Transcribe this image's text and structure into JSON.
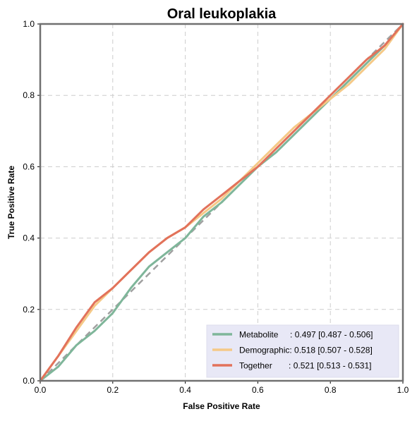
{
  "chart_data": {
    "type": "line",
    "title": "Oral leukoplakia",
    "xlabel": "False Positive Rate",
    "ylabel": "True Positive Rate",
    "xlim": [
      0,
      1
    ],
    "ylim": [
      0,
      1
    ],
    "xticks": [
      "0.0",
      "0.2",
      "0.4",
      "0.6",
      "0.8",
      "1.0"
    ],
    "yticks": [
      "0.0",
      "0.2",
      "0.4",
      "0.6",
      "0.8",
      "1.0"
    ],
    "grid": true,
    "legend_position": "bottom-right",
    "reference_line": {
      "x": [
        0,
        1
      ],
      "y": [
        0,
        1
      ],
      "style": "dashed",
      "color": "#a0a0a0"
    },
    "series": [
      {
        "name": "Metabolite",
        "label": "Metabolite     : 0.497 [0.487 - 0.506]",
        "color": "#7fb69a",
        "x": [
          0,
          0.05,
          0.1,
          0.15,
          0.2,
          0.25,
          0.3,
          0.35,
          0.4,
          0.45,
          0.5,
          0.55,
          0.6,
          0.65,
          0.7,
          0.75,
          0.8,
          0.85,
          0.9,
          0.95,
          1.0
        ],
        "y": [
          0,
          0.04,
          0.1,
          0.14,
          0.19,
          0.26,
          0.32,
          0.36,
          0.4,
          0.46,
          0.5,
          0.55,
          0.6,
          0.64,
          0.69,
          0.74,
          0.79,
          0.84,
          0.89,
          0.94,
          1.0
        ]
      },
      {
        "name": "Demographic",
        "label": "Demographic: 0.518 [0.507 - 0.528]",
        "color": "#f5c987",
        "x": [
          0,
          0.05,
          0.1,
          0.15,
          0.2,
          0.25,
          0.3,
          0.35,
          0.4,
          0.45,
          0.5,
          0.55,
          0.6,
          0.65,
          0.7,
          0.75,
          0.8,
          0.85,
          0.9,
          0.95,
          1.0
        ],
        "y": [
          0,
          0.07,
          0.14,
          0.21,
          0.26,
          0.31,
          0.36,
          0.4,
          0.43,
          0.47,
          0.51,
          0.56,
          0.61,
          0.66,
          0.71,
          0.75,
          0.79,
          0.83,
          0.88,
          0.93,
          1.0
        ]
      },
      {
        "name": "Together",
        "label": "Together       : 0.521 [0.513 - 0.531]",
        "color": "#e2725b",
        "x": [
          0,
          0.05,
          0.1,
          0.15,
          0.2,
          0.25,
          0.3,
          0.35,
          0.4,
          0.45,
          0.5,
          0.55,
          0.6,
          0.65,
          0.7,
          0.75,
          0.8,
          0.85,
          0.9,
          0.95,
          1.0
        ],
        "y": [
          0,
          0.07,
          0.15,
          0.22,
          0.26,
          0.31,
          0.36,
          0.4,
          0.43,
          0.48,
          0.52,
          0.56,
          0.6,
          0.65,
          0.7,
          0.75,
          0.8,
          0.85,
          0.9,
          0.94,
          1.0
        ]
      }
    ]
  },
  "colors": {
    "legend_background": "#e8e8f6",
    "grid": "#cccccc",
    "axes": "#707070"
  }
}
